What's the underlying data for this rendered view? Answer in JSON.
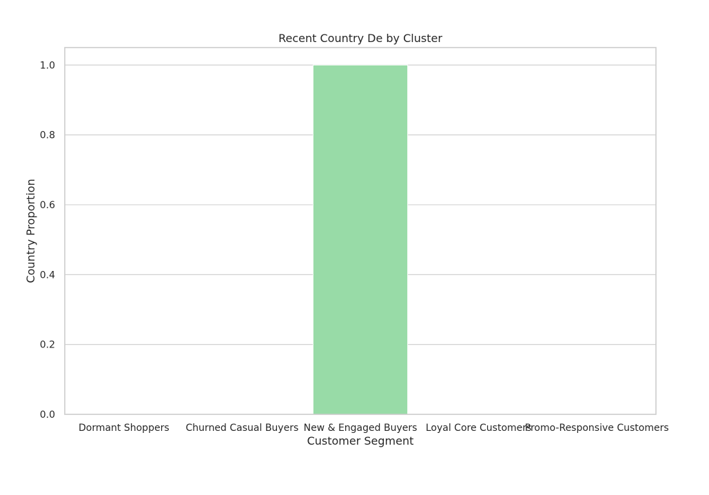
{
  "chart_data": {
    "type": "bar",
    "title": "Recent Country De by Cluster",
    "xlabel": "Customer Segment",
    "ylabel": "Country Proportion",
    "categories": [
      "Dormant Shoppers",
      "Churned Casual Buyers",
      "New & Engaged Buyers",
      "Loyal Core Customers",
      "Promo-Responsive Customers"
    ],
    "values": [
      0.0,
      0.0,
      1.0,
      0.0,
      0.0
    ],
    "ylim": [
      0,
      1.05
    ],
    "yticks": [
      "0.0",
      "0.2",
      "0.4",
      "0.6",
      "0.8",
      "1.0"
    ],
    "grid": true,
    "legend": "none",
    "colors": [
      "#4c72b0",
      "#dd8452",
      "#98dba7",
      "#c44e52",
      "#8172b3"
    ]
  }
}
